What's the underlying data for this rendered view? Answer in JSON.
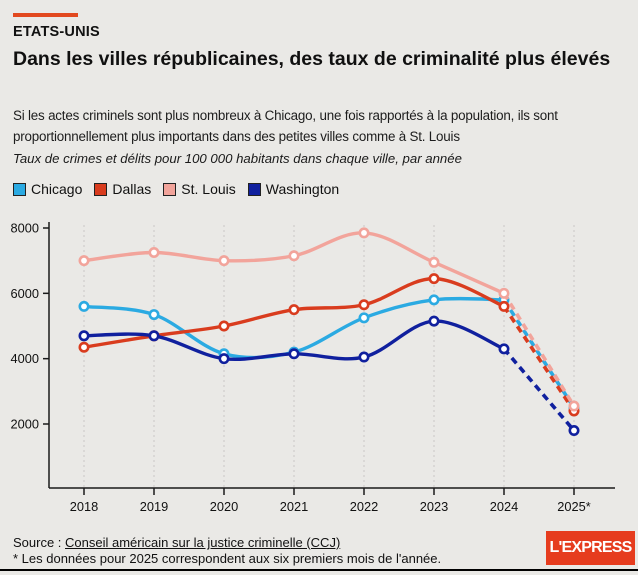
{
  "kicker": "ETATS-UNIS",
  "title": "Dans les villes républicaines, des taux de criminalité plus élevés",
  "subtitle": "Si les actes criminels sont plus nombreux à Chicago, une fois rapportés à la population, ils sont proportionnellement plus importants dans des petites villes comme à St. Louis",
  "note": "Taux de crimes et délits pour 100 000 habitants dans chaque ville, par année",
  "chart_data": {
    "type": "line",
    "x": [
      "2018",
      "2019",
      "2020",
      "2021",
      "2022",
      "2023",
      "2024",
      "2025*"
    ],
    "series": [
      {
        "name": "Chicago",
        "color": "#2BAAE2",
        "values": [
          5600,
          5350,
          4150,
          4200,
          5250,
          5800,
          5800,
          2500
        ]
      },
      {
        "name": "Dallas",
        "color": "#D93C1E",
        "values": [
          4350,
          4700,
          5000,
          5500,
          5650,
          6450,
          5600,
          2400
        ]
      },
      {
        "name": "St. Louis",
        "color": "#F2A49B",
        "values": [
          7000,
          7250,
          7000,
          7150,
          7850,
          6950,
          6000,
          2550
        ]
      },
      {
        "name": "Washington",
        "color": "#10209E",
        "values": [
          4700,
          4700,
          4000,
          4150,
          4050,
          5150,
          4300,
          1800
        ]
      }
    ],
    "yticks": [
      2000,
      4000,
      6000,
      8000
    ],
    "ylim": [
      0,
      8200
    ],
    "dashed_from_index": 6,
    "grid": "vertical-dashed",
    "legend_position": "top"
  },
  "footer": {
    "source_prefix": "Source : ",
    "source_link": "Conseil américain sur la justice criminelle (CCJ)",
    "footnote": "* Les données pour 2025 correspondent aux six premiers mois de l'année.",
    "brand": "L'EXPRESS"
  },
  "colors": {
    "accent": "#E2491F",
    "background": "#EAE9E6",
    "brand_background": "#E63C1E",
    "axis": "#1A1A1A",
    "gridline": "#C9C8C6"
  }
}
